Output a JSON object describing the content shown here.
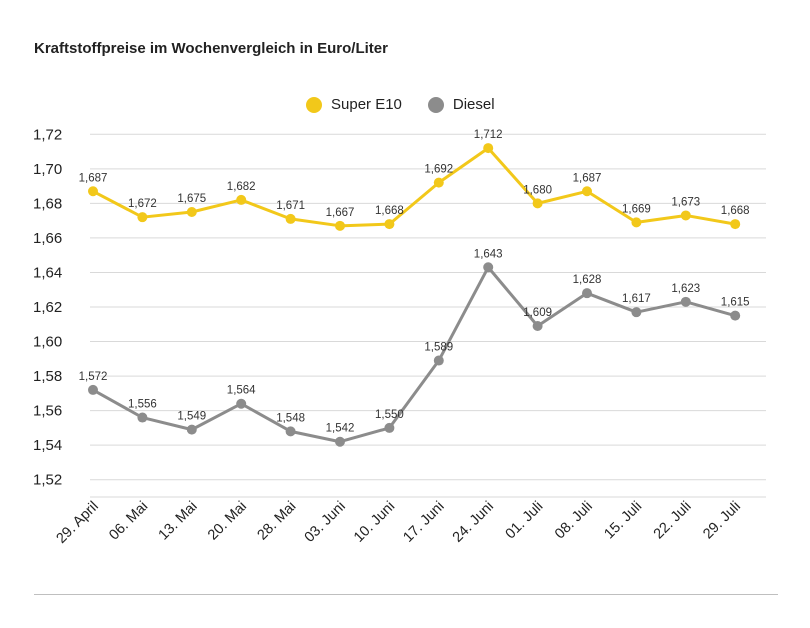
{
  "title": "Kraftstoffpreise im Wochenvergleich in Euro/Liter",
  "colors": {
    "super": "#f2c81a",
    "diesel": "#8c8c8c",
    "grid": "#d9d9d9",
    "text": "#222222"
  },
  "chart_data": {
    "type": "line",
    "categories": [
      "29. April",
      "06. Mai",
      "13. Mai",
      "20. Mai",
      "28. Mai",
      "03. Juni",
      "10. Juni",
      "17. Juni",
      "24. Juni",
      "01. Juli",
      "08. Juli",
      "15. Juli",
      "22. Juli",
      "29. Juli"
    ],
    "series": [
      {
        "name": "Super E10",
        "values": [
          1.687,
          1.672,
          1.675,
          1.682,
          1.671,
          1.667,
          1.668,
          1.692,
          1.712,
          1.68,
          1.687,
          1.669,
          1.673,
          1.668
        ],
        "labels": [
          "1,687",
          "1,672",
          "1,675",
          "1,682",
          "1,671",
          "1,667",
          "1,668",
          "1,692",
          "1,712",
          "1,680",
          "1,687",
          "1,669",
          "1,673",
          "1,668"
        ]
      },
      {
        "name": "Diesel",
        "values": [
          1.572,
          1.556,
          1.549,
          1.564,
          1.548,
          1.542,
          1.55,
          1.589,
          1.643,
          1.609,
          1.628,
          1.617,
          1.623,
          1.615
        ],
        "labels": [
          "1,572",
          "1,556",
          "1,549",
          "1,564",
          "1,548",
          "1,542",
          "1,550",
          "1,589",
          "1,643",
          "1,609",
          "1,628",
          "1,617",
          "1,623",
          "1,615"
        ]
      }
    ],
    "ylim": [
      1.51,
      1.73
    ],
    "yticks": [
      1.52,
      1.54,
      1.56,
      1.58,
      1.6,
      1.62,
      1.64,
      1.66,
      1.68,
      1.7,
      1.72
    ],
    "ytick_labels": [
      "1,52",
      "1,54",
      "1,56",
      "1,58",
      "1,60",
      "1,62",
      "1,64",
      "1,66",
      "1,68",
      "1,70",
      "1,72"
    ],
    "xlabel": "",
    "ylabel": "",
    "grid": true,
    "legend": "top-center"
  }
}
